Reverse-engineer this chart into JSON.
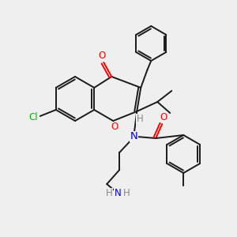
{
  "bg_color": "#efefef",
  "atom_colors": {
    "C": "#000000",
    "O": "#ff0000",
    "N": "#0000cc",
    "Cl": "#00bb00",
    "H": "#888888"
  },
  "bond_color": "#1a1a1a",
  "figsize": [
    3.0,
    3.0
  ],
  "dpi": 100
}
